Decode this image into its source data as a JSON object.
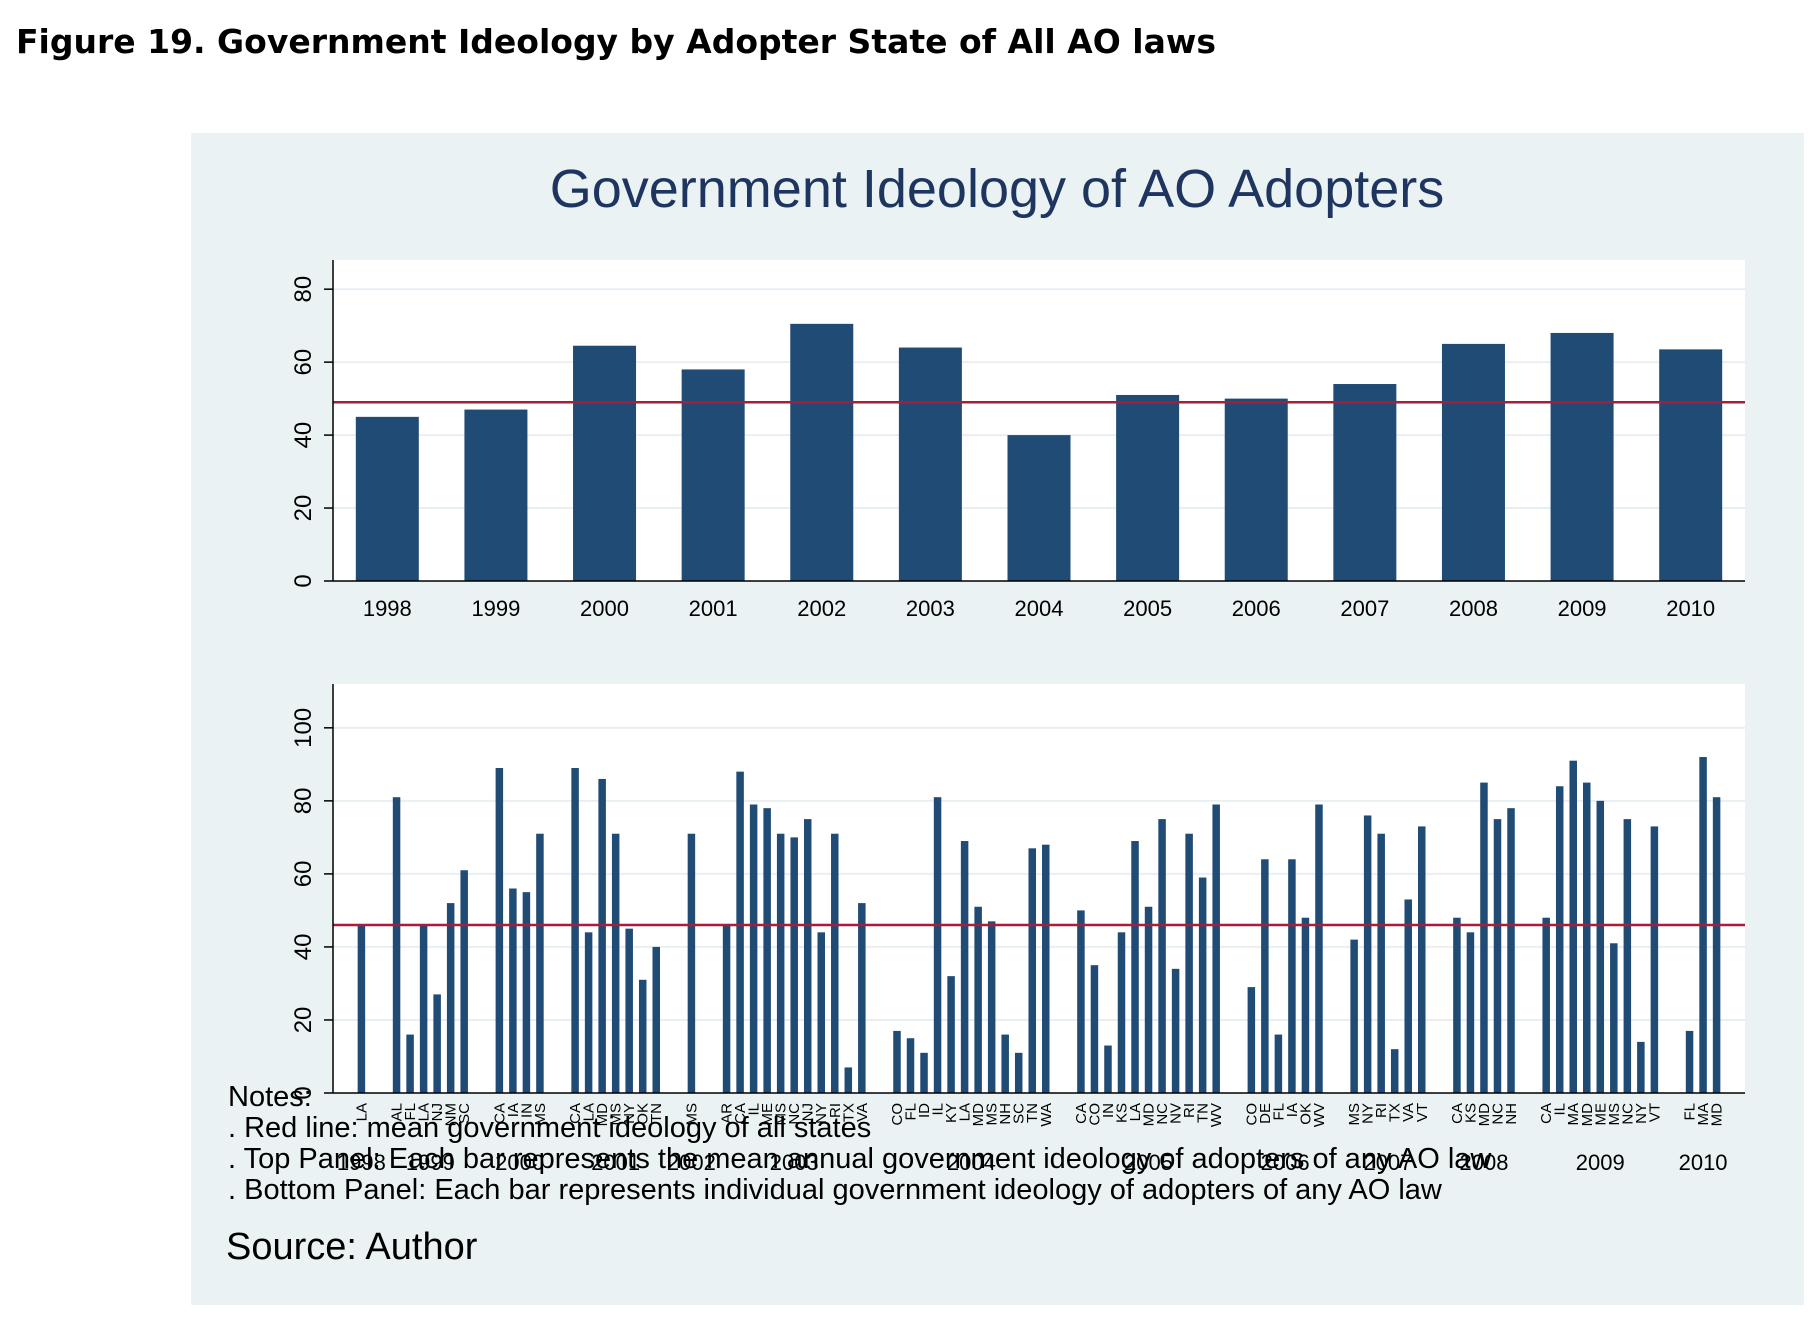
{
  "figure_caption": "Figure 19. Government Ideology by Adopter State of All AO laws",
  "notes": {
    "heading": "Notes:",
    "lines": [
      ". Red line: mean government ideology of all states",
      ". Top Panel: Each bar represents the mean annual government ideology of adopters of any AO law",
      ". Bottom Panel: Each bar represents individual government ideology of adopters of any AO law"
    ]
  },
  "source": "Source: Author",
  "colors": {
    "bar": "#1f4b74",
    "mean_line": "#a51e3c",
    "panel_bg": "#eaf2f3",
    "plot_bg": "#ffffff",
    "grid": "#e8eff2",
    "title": "#1e3560"
  },
  "chart_data": [
    {
      "type": "bar",
      "title": "Government Ideology of AO Adopters",
      "categories": [
        "1998",
        "1999",
        "2000",
        "2001",
        "2002",
        "2003",
        "2004",
        "2005",
        "2006",
        "2007",
        "2008",
        "2009",
        "2010"
      ],
      "values": [
        45,
        47,
        64.5,
        58,
        70.5,
        64,
        40,
        51,
        50,
        54,
        65,
        68,
        63.5
      ],
      "mean_line": 49,
      "ylim": [
        0,
        88
      ],
      "yticks": [
        0,
        20,
        40,
        60,
        80
      ],
      "xlabel": "",
      "ylabel": "",
      "grid": true
    },
    {
      "type": "bar",
      "categories": [
        "LA",
        "AL",
        "FL",
        "LA",
        "NJ",
        "NM",
        "SC",
        "CA",
        "IA",
        "IN",
        "MS",
        "CA",
        "LA",
        "MD",
        "MS",
        "NY",
        "OK",
        "TN",
        "MS",
        "AR",
        "CA",
        "IL",
        "ME",
        "MS",
        "NC",
        "NJ",
        "NY",
        "RI",
        "TX",
        "VA",
        "CO",
        "FL",
        "ID",
        "IL",
        "KY",
        "LA",
        "MD",
        "MS",
        "NH",
        "SC",
        "TN",
        "WA",
        "CA",
        "CO",
        "IN",
        "KS",
        "LA",
        "MD",
        "NC",
        "NV",
        "RI",
        "TN",
        "WV",
        "CO",
        "DE",
        "FL",
        "IA",
        "OK",
        "WV",
        "MS",
        "NY",
        "RI",
        "TX",
        "VA",
        "VT",
        "CA",
        "KS",
        "MD",
        "NC",
        "NH",
        "CA",
        "IL",
        "MA",
        "MD",
        "ME",
        "MS",
        "NC",
        "NY",
        "VT",
        "FL",
        "MA",
        "MD"
      ],
      "values": [
        46,
        81,
        16,
        46,
        27,
        52,
        61,
        89,
        56,
        55,
        71,
        89,
        44,
        86,
        71,
        45,
        31,
        40,
        71,
        46,
        88,
        79,
        78,
        71,
        70,
        75,
        44,
        71,
        7,
        52,
        17,
        15,
        11,
        81,
        32,
        69,
        51,
        47,
        16,
        11,
        67,
        68,
        50,
        35,
        13,
        44,
        69,
        51,
        75,
        34,
        71,
        59,
        79,
        29,
        64,
        16,
        64,
        48,
        79,
        42,
        76,
        71,
        12,
        53,
        73,
        48,
        44,
        85,
        75,
        78,
        48,
        84,
        91,
        85,
        80,
        41,
        75,
        14,
        73,
        17,
        92,
        81
      ],
      "group_of_bar": [
        0,
        1,
        1,
        1,
        1,
        1,
        1,
        2,
        2,
        2,
        2,
        3,
        3,
        3,
        3,
        3,
        3,
        3,
        4,
        5,
        5,
        5,
        5,
        5,
        5,
        5,
        5,
        5,
        5,
        5,
        6,
        6,
        6,
        6,
        6,
        6,
        6,
        6,
        6,
        6,
        6,
        6,
        7,
        7,
        7,
        7,
        7,
        7,
        7,
        7,
        7,
        7,
        7,
        8,
        8,
        8,
        8,
        8,
        8,
        9,
        9,
        9,
        9,
        9,
        9,
        10,
        10,
        10,
        10,
        10,
        11,
        11,
        11,
        11,
        11,
        11,
        11,
        11,
        11,
        12,
        12,
        12
      ],
      "group_labels": [
        "1998",
        "1999",
        "2000",
        "2001",
        "2002",
        "2003",
        "2004",
        "2005",
        "2006",
        "2007",
        "2008",
        "2009",
        "2010"
      ],
      "mean_line": 46,
      "ylim": [
        0,
        112
      ],
      "yticks": [
        0,
        20,
        40,
        60,
        80,
        100
      ],
      "xlabel": "",
      "ylabel": "",
      "grid": true
    }
  ]
}
